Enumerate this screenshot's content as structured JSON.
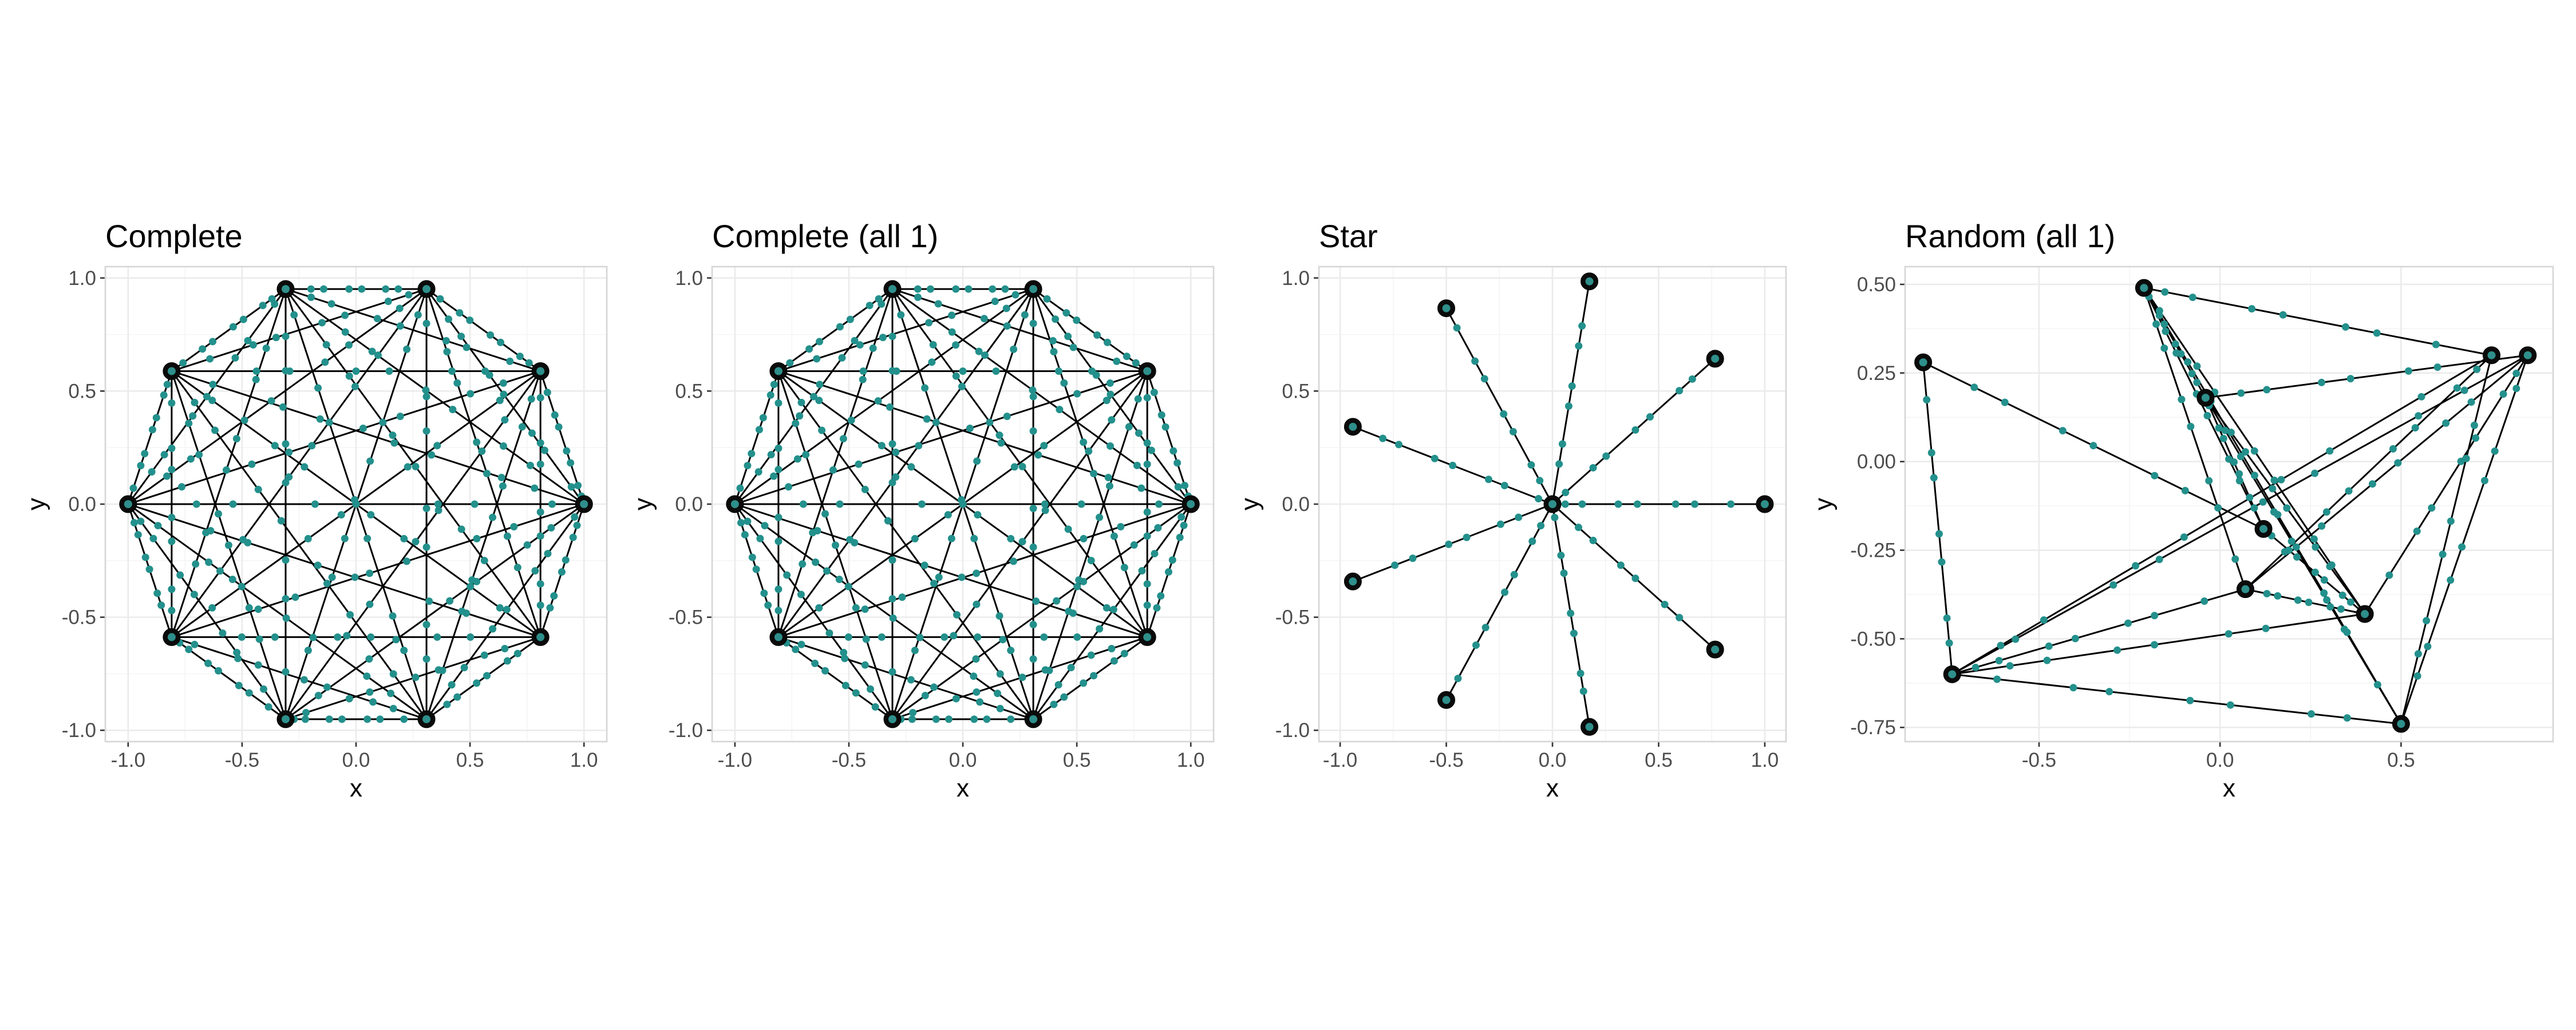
{
  "colors": {
    "edge": "#000000",
    "node": "#000000",
    "sample": "#23908c",
    "panel_bg": "#ffffff",
    "grid": "#ebebeb"
  },
  "chart_data": [
    {
      "type": "network",
      "title": "Complete",
      "xlabel": "x",
      "ylabel": "y",
      "xlim": [
        -1.1,
        1.1
      ],
      "ylim": [
        -1.05,
        1.05
      ],
      "xticks": [
        -1.0,
        -0.5,
        0.0,
        0.5,
        1.0
      ],
      "xtick_labels": [
        "-1.0",
        "-0.5",
        "0.0",
        "0.5",
        "1.0"
      ],
      "yticks": [
        -1.0,
        -0.5,
        0.0,
        0.5,
        1.0
      ],
      "ytick_labels": [
        "-1.0",
        "-0.5",
        "0.0",
        "0.5",
        "1.0"
      ],
      "grid": true,
      "nodes": [
        {
          "x": 1.0,
          "y": 0.0
        },
        {
          "x": 0.809,
          "y": 0.588
        },
        {
          "x": 0.309,
          "y": 0.951
        },
        {
          "x": -0.309,
          "y": 0.951
        },
        {
          "x": -0.809,
          "y": 0.588
        },
        {
          "x": -1.0,
          "y": 0.0
        },
        {
          "x": -0.809,
          "y": -0.588
        },
        {
          "x": -0.309,
          "y": -0.951
        },
        {
          "x": 0.309,
          "y": -0.951
        },
        {
          "x": 0.809,
          "y": -0.588
        }
      ],
      "edges": "complete"
    },
    {
      "type": "network",
      "title": "Complete (all 1)",
      "xlabel": "x",
      "ylabel": "y",
      "xlim": [
        -1.1,
        1.1
      ],
      "ylim": [
        -1.05,
        1.05
      ],
      "xticks": [
        -1.0,
        -0.5,
        0.0,
        0.5,
        1.0
      ],
      "xtick_labels": [
        "-1.0",
        "-0.5",
        "0.0",
        "0.5",
        "1.0"
      ],
      "yticks": [
        -1.0,
        -0.5,
        0.0,
        0.5,
        1.0
      ],
      "ytick_labels": [
        "-1.0",
        "-0.5",
        "0.0",
        "0.5",
        "1.0"
      ],
      "grid": true,
      "nodes": [
        {
          "x": 1.0,
          "y": 0.0
        },
        {
          "x": 0.809,
          "y": 0.588
        },
        {
          "x": 0.309,
          "y": 0.951
        },
        {
          "x": -0.309,
          "y": 0.951
        },
        {
          "x": -0.809,
          "y": 0.588
        },
        {
          "x": -1.0,
          "y": 0.0
        },
        {
          "x": -0.809,
          "y": -0.588
        },
        {
          "x": -0.309,
          "y": -0.951
        },
        {
          "x": 0.309,
          "y": -0.951
        },
        {
          "x": 0.809,
          "y": -0.588
        }
      ],
      "edges": "complete"
    },
    {
      "type": "network",
      "title": "Star",
      "xlabel": "x",
      "ylabel": "y",
      "xlim": [
        -1.1,
        1.1
      ],
      "ylim": [
        -1.05,
        1.05
      ],
      "xticks": [
        -1.0,
        -0.5,
        0.0,
        0.5,
        1.0
      ],
      "xtick_labels": [
        "-1.0",
        "-0.5",
        "0.0",
        "0.5",
        "1.0"
      ],
      "yticks": [
        -1.0,
        -0.5,
        0.0,
        0.5,
        1.0
      ],
      "ytick_labels": [
        "-1.0",
        "-0.5",
        "0.0",
        "0.5",
        "1.0"
      ],
      "grid": true,
      "nodes": [
        {
          "x": 0.0,
          "y": 0.0
        },
        {
          "x": 1.0,
          "y": 0.0
        },
        {
          "x": 0.766,
          "y": 0.643
        },
        {
          "x": 0.174,
          "y": 0.985
        },
        {
          "x": -0.5,
          "y": 0.866
        },
        {
          "x": -0.94,
          "y": 0.342
        },
        {
          "x": -0.94,
          "y": -0.342
        },
        {
          "x": -0.5,
          "y": -0.866
        },
        {
          "x": 0.174,
          "y": -0.985
        },
        {
          "x": 0.766,
          "y": -0.643
        }
      ],
      "edges": [
        [
          0,
          1
        ],
        [
          0,
          2
        ],
        [
          0,
          3
        ],
        [
          0,
          4
        ],
        [
          0,
          5
        ],
        [
          0,
          6
        ],
        [
          0,
          7
        ],
        [
          0,
          8
        ],
        [
          0,
          9
        ]
      ]
    },
    {
      "type": "network",
      "title": "Random (all 1)",
      "xlabel": "x",
      "ylabel": "y",
      "xlim": [
        -0.87,
        0.92
      ],
      "ylim": [
        -0.79,
        0.55
      ],
      "xticks": [
        -0.5,
        0.0,
        0.5
      ],
      "xtick_labels": [
        "-0.5",
        "0.0",
        "0.5"
      ],
      "yticks": [
        -0.75,
        -0.5,
        -0.25,
        0.0,
        0.25,
        0.5
      ],
      "ytick_labels": [
        "-0.75",
        "-0.50",
        "-0.25",
        "0.00",
        "0.25",
        "0.50"
      ],
      "grid": true,
      "nodes": [
        {
          "x": -0.21,
          "y": 0.49
        },
        {
          "x": 0.75,
          "y": 0.3
        },
        {
          "x": 0.85,
          "y": 0.3
        },
        {
          "x": -0.82,
          "y": 0.28
        },
        {
          "x": -0.04,
          "y": 0.18
        },
        {
          "x": 0.12,
          "y": -0.19
        },
        {
          "x": 0.07,
          "y": -0.36
        },
        {
          "x": 0.4,
          "y": -0.43
        },
        {
          "x": -0.74,
          "y": -0.6
        },
        {
          "x": 0.5,
          "y": -0.74
        }
      ],
      "edges": [
        [
          0,
          1
        ],
        [
          0,
          4
        ],
        [
          0,
          5
        ],
        [
          0,
          6
        ],
        [
          0,
          7
        ],
        [
          0,
          9
        ],
        [
          4,
          2
        ],
        [
          4,
          5
        ],
        [
          4,
          7
        ],
        [
          4,
          9
        ],
        [
          3,
          8
        ],
        [
          3,
          5
        ],
        [
          8,
          1
        ],
        [
          8,
          2
        ],
        [
          8,
          7
        ],
        [
          8,
          6
        ],
        [
          8,
          9
        ],
        [
          2,
          6
        ],
        [
          2,
          7
        ],
        [
          2,
          9
        ],
        [
          1,
          9
        ],
        [
          1,
          6
        ],
        [
          5,
          7
        ],
        [
          6,
          7
        ]
      ]
    }
  ]
}
